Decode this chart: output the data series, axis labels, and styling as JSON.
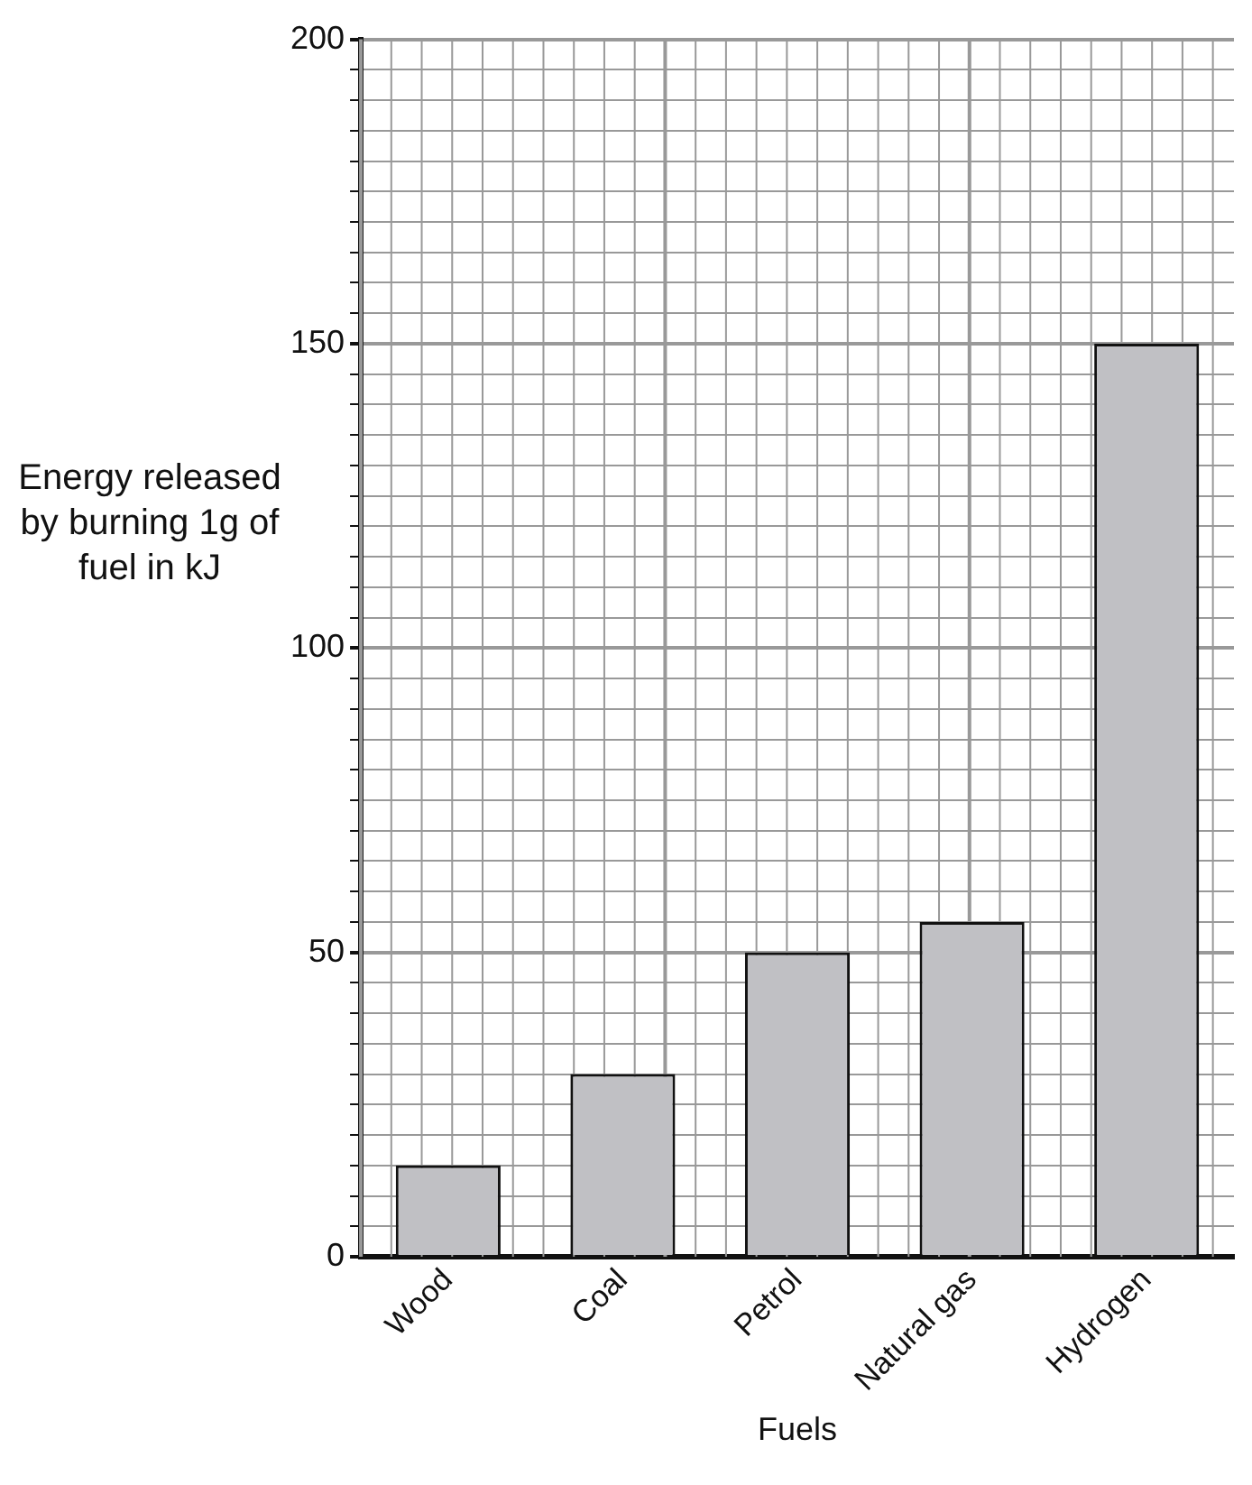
{
  "chart_data": {
    "type": "bar",
    "xlabel": "Fuels",
    "ylabel": "Energy released by burning 1g of fuel in kJ",
    "categories": [
      "Wood",
      "Coal",
      "Petrol",
      "Natural gas",
      "Hydrogen"
    ],
    "values": [
      15,
      30,
      50,
      55,
      150
    ],
    "color": "#c0c0c4",
    "ylim": [
      0,
      200
    ],
    "yticks": [
      0,
      {
        "value": 5,
        "label": null
      },
      {
        "value": 10,
        "label": null
      },
      {
        "value": 15,
        "label": null
      },
      {
        "value": 20,
        "label": null
      },
      {
        "value": 25,
        "label": null
      },
      {
        "value": 30,
        "label": null
      },
      {
        "value": 35,
        "label": null
      },
      {
        "value": 40,
        "label": null
      },
      {
        "value": 45,
        "label": null
      },
      50,
      {
        "value": 55,
        "label": null
      },
      {
        "value": 60,
        "label": null
      },
      {
        "value": 65,
        "label": null
      },
      {
        "value": 70,
        "label": null
      },
      {
        "value": 75,
        "label": null
      },
      {
        "value": 80,
        "label": null
      },
      {
        "value": 85,
        "label": null
      },
      {
        "value": 90,
        "label": null
      },
      {
        "value": 95,
        "label": null
      },
      100,
      {
        "value": 105,
        "label": null
      },
      {
        "value": 110,
        "label": null
      },
      {
        "value": 115,
        "label": null
      },
      {
        "value": 120,
        "label": null
      },
      {
        "value": 125,
        "label": null
      },
      {
        "value": 130,
        "label": null
      },
      {
        "value": 135,
        "label": null
      },
      {
        "value": 140,
        "label": null
      },
      {
        "value": 145,
        "label": null
      },
      150,
      {
        "value": 155,
        "label": null
      },
      {
        "value": 160,
        "label": null
      },
      {
        "value": 165,
        "label": null
      },
      {
        "value": 170,
        "label": null
      },
      {
        "value": 175,
        "label": null
      },
      {
        "value": 180,
        "label": null
      },
      {
        "value": 185,
        "label": null
      },
      {
        "value": 190,
        "label": null
      },
      {
        "value": 195,
        "label": null
      },
      200
    ],
    "grid": true
  }
}
